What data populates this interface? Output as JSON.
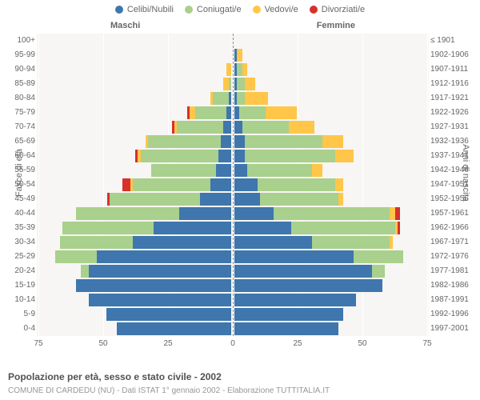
{
  "legend": [
    {
      "label": "Celibi/Nubili",
      "color": "#3f76ad"
    },
    {
      "label": "Coniugati/e",
      "color": "#a9d08c"
    },
    {
      "label": "Vedovi/e",
      "color": "#ffc649"
    },
    {
      "label": "Divorziati/e",
      "color": "#d6312b"
    }
  ],
  "headers": {
    "left": "Maschi",
    "right": "Femmine"
  },
  "axes": {
    "left_title": "Fasce di età",
    "right_title": "Anni di nascita",
    "xmax": 75,
    "x_ticks": [
      75,
      50,
      25,
      0,
      25,
      50,
      75
    ],
    "grid_color": "#ffffff",
    "plot_bg": "#f7f6f4"
  },
  "caption": {
    "title": "Popolazione per età, sesso e stato civile - 2002",
    "subtitle": "COMUNE DI CARDEDU (NU) - Dati ISTAT 1° gennaio 2002 - Elaborazione TUTTITALIA.IT"
  },
  "rows": [
    {
      "age": "100+",
      "birth": "≤ 1901",
      "m": [
        0,
        0,
        0,
        0
      ],
      "f": [
        0,
        0,
        0,
        0
      ]
    },
    {
      "age": "95-99",
      "birth": "1902-1906",
      "m": [
        0,
        0,
        0,
        0
      ],
      "f": [
        1,
        0,
        2,
        0
      ]
    },
    {
      "age": "90-94",
      "birth": "1907-1911",
      "m": [
        0,
        0,
        2,
        0
      ],
      "f": [
        1,
        2,
        2,
        0
      ]
    },
    {
      "age": "85-89",
      "birth": "1912-1916",
      "m": [
        0,
        1,
        2,
        0
      ],
      "f": [
        1,
        3,
        4,
        0
      ]
    },
    {
      "age": "80-84",
      "birth": "1917-1921",
      "m": [
        1,
        6,
        1,
        0
      ],
      "f": [
        1,
        3,
        9,
        0
      ]
    },
    {
      "age": "75-79",
      "birth": "1922-1926",
      "m": [
        2,
        12,
        2,
        1
      ],
      "f": [
        2,
        10,
        12,
        0
      ]
    },
    {
      "age": "70-74",
      "birth": "1927-1931",
      "m": [
        3,
        18,
        1,
        1
      ],
      "f": [
        3,
        18,
        10,
        0
      ]
    },
    {
      "age": "65-69",
      "birth": "1932-1936",
      "m": [
        4,
        28,
        1,
        0
      ],
      "f": [
        4,
        30,
        8,
        0
      ]
    },
    {
      "age": "60-64",
      "birth": "1937-1941",
      "m": [
        5,
        30,
        1,
        1
      ],
      "f": [
        4,
        35,
        7,
        0
      ]
    },
    {
      "age": "55-59",
      "birth": "1942-1946",
      "m": [
        6,
        25,
        0,
        0
      ],
      "f": [
        5,
        25,
        4,
        0
      ]
    },
    {
      "age": "50-54",
      "birth": "1947-1951",
      "m": [
        8,
        30,
        1,
        3
      ],
      "f": [
        9,
        30,
        3,
        0
      ]
    },
    {
      "age": "45-49",
      "birth": "1952-1956",
      "m": [
        12,
        35,
        0,
        1
      ],
      "f": [
        10,
        30,
        2,
        0
      ]
    },
    {
      "age": "40-44",
      "birth": "1957-1961",
      "m": [
        20,
        40,
        0,
        0
      ],
      "f": [
        15,
        45,
        2,
        2
      ]
    },
    {
      "age": "35-39",
      "birth": "1962-1966",
      "m": [
        30,
        35,
        0,
        0
      ],
      "f": [
        22,
        40,
        1,
        1
      ]
    },
    {
      "age": "30-34",
      "birth": "1967-1971",
      "m": [
        38,
        28,
        0,
        0
      ],
      "f": [
        30,
        30,
        1,
        0
      ]
    },
    {
      "age": "25-29",
      "birth": "1972-1976",
      "m": [
        52,
        16,
        0,
        0
      ],
      "f": [
        46,
        19,
        0,
        0
      ]
    },
    {
      "age": "20-24",
      "birth": "1977-1981",
      "m": [
        55,
        3,
        0,
        0
      ],
      "f": [
        53,
        5,
        0,
        0
      ]
    },
    {
      "age": "15-19",
      "birth": "1982-1986",
      "m": [
        60,
        0,
        0,
        0
      ],
      "f": [
        57,
        0,
        0,
        0
      ]
    },
    {
      "age": "10-14",
      "birth": "1987-1991",
      "m": [
        55,
        0,
        0,
        0
      ],
      "f": [
        47,
        0,
        0,
        0
      ]
    },
    {
      "age": "5-9",
      "birth": "1992-1996",
      "m": [
        48,
        0,
        0,
        0
      ],
      "f": [
        42,
        0,
        0,
        0
      ]
    },
    {
      "age": "0-4",
      "birth": "1997-2001",
      "m": [
        44,
        0,
        0,
        0
      ],
      "f": [
        40,
        0,
        0,
        0
      ]
    }
  ]
}
